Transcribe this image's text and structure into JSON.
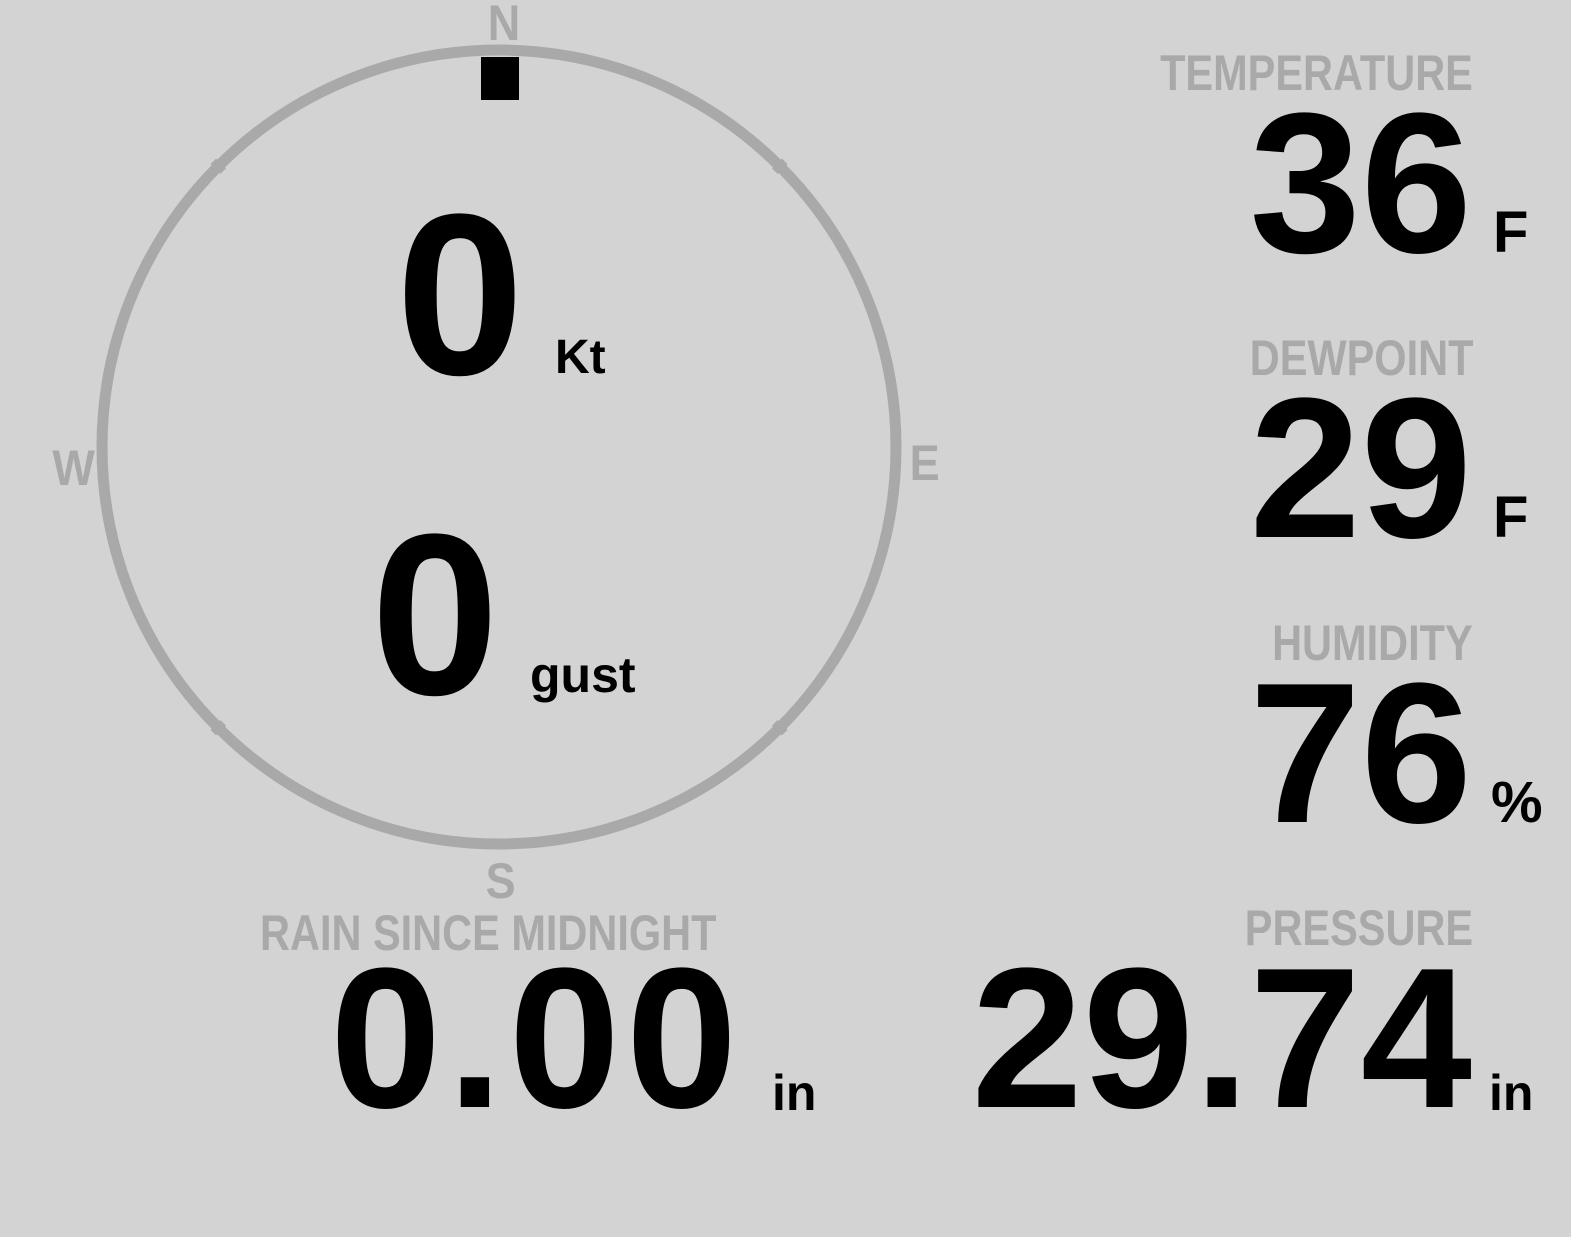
{
  "colors": {
    "background": "#d3d3d3",
    "label": "#a9a9a9",
    "value": "#000000",
    "ring": "#a9a9a9"
  },
  "wind": {
    "direction_deg": 0,
    "speed": "0",
    "speed_unit": "Kt",
    "gust": "0",
    "gust_unit": "gust",
    "cardinals": {
      "n": "N",
      "e": "E",
      "s": "S",
      "w": "W"
    }
  },
  "temperature": {
    "label": "TEMPERATURE",
    "value": "36",
    "unit": "F"
  },
  "dewpoint": {
    "label": "DEWPOINT",
    "value": "29",
    "unit": "F"
  },
  "humidity": {
    "label": "HUMIDITY",
    "value": "76",
    "unit": "%"
  },
  "pressure": {
    "label": "PRESSURE",
    "value": "29.74",
    "unit": "in"
  },
  "rain": {
    "label": "RAIN SINCE MIDNIGHT",
    "value": "0.00",
    "unit": "in"
  }
}
